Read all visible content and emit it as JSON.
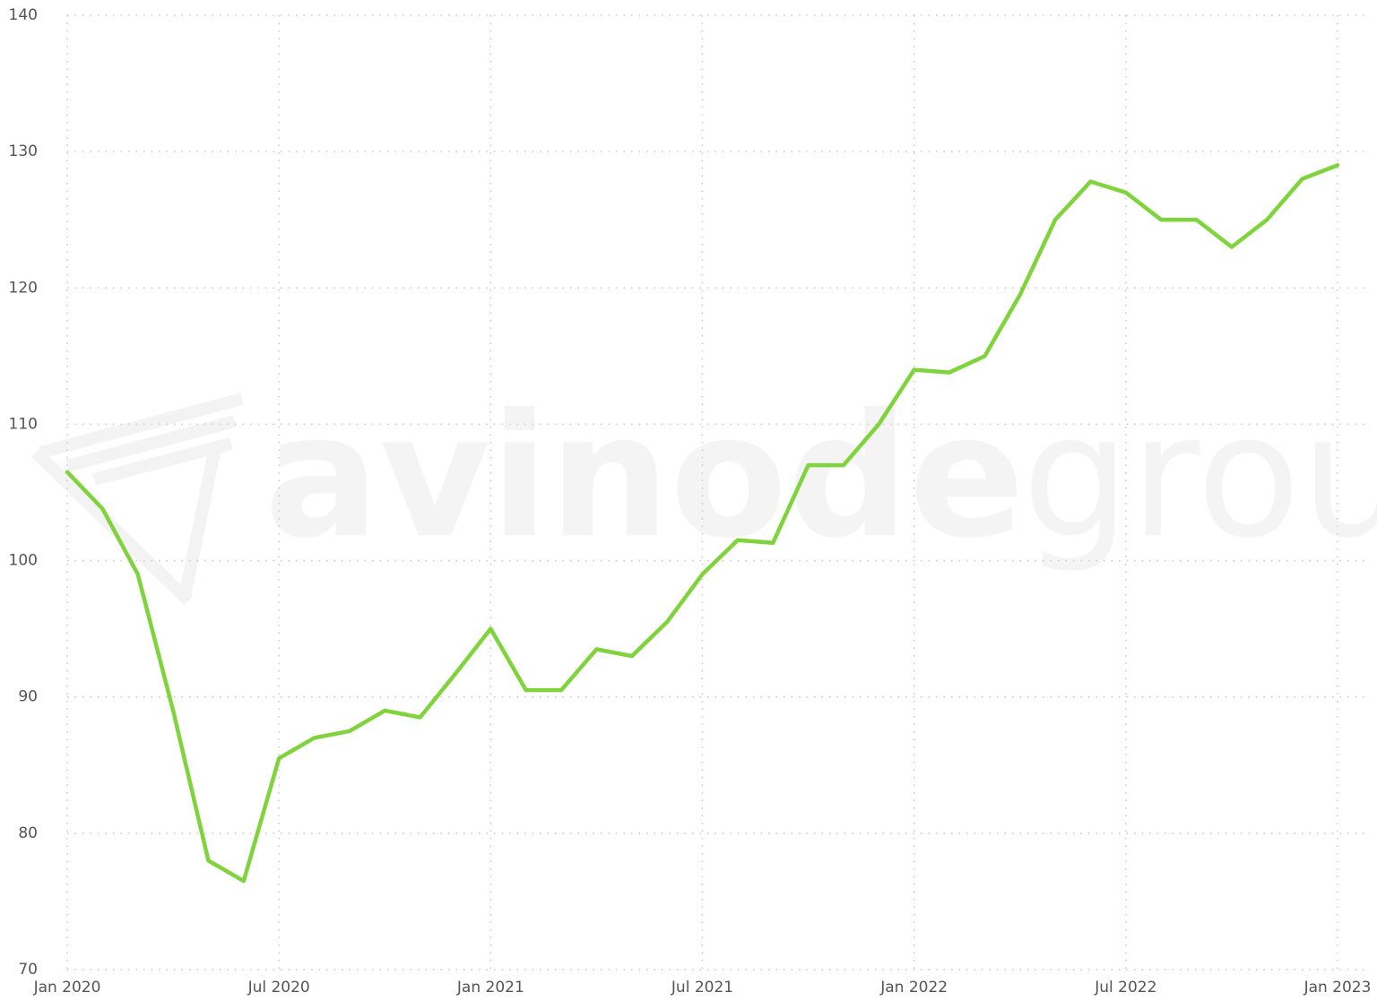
{
  "chart_data": {
    "type": "line",
    "watermark": {
      "brand": "avinode",
      "suffix": "group"
    },
    "x": [
      "2020-01",
      "2020-02",
      "2020-03",
      "2020-04",
      "2020-05",
      "2020-06",
      "2020-07",
      "2020-08",
      "2020-09",
      "2020-10",
      "2020-11",
      "2020-12",
      "2021-01",
      "2021-02",
      "2021-03",
      "2021-04",
      "2021-05",
      "2021-06",
      "2021-07",
      "2021-08",
      "2021-09",
      "2021-10",
      "2021-11",
      "2021-12",
      "2022-01",
      "2022-02",
      "2022-03",
      "2022-04",
      "2022-05",
      "2022-06",
      "2022-07",
      "2022-08",
      "2022-09",
      "2022-10",
      "2022-11",
      "2022-12",
      "2023-01"
    ],
    "series": [
      {
        "color": "#7ed43a",
        "values": [
          106.5,
          103.8,
          99,
          89,
          78,
          76.5,
          85.5,
          87,
          87.5,
          89,
          88.5,
          91.7,
          95,
          90.5,
          90.5,
          93.5,
          93,
          95.5,
          99,
          101.5,
          101.3,
          107,
          107,
          110,
          114,
          113.8,
          115,
          119.5,
          125,
          127.8,
          127,
          125,
          125,
          123,
          125,
          128,
          129
        ]
      }
    ],
    "xticks": [
      {
        "value": "2020-01",
        "label": "Jan 2020"
      },
      {
        "value": "2020-07",
        "label": "Jul 2020"
      },
      {
        "value": "2021-01",
        "label": "Jan 2021"
      },
      {
        "value": "2021-07",
        "label": "Jul 2021"
      },
      {
        "value": "2022-01",
        "label": "Jan 2022"
      },
      {
        "value": "2022-07",
        "label": "Jul 2022"
      },
      {
        "value": "2023-01",
        "label": "Jan 2023"
      }
    ],
    "ylim": [
      70,
      140
    ],
    "yticks": [
      70,
      80,
      90,
      100,
      110,
      120,
      130,
      140
    ],
    "grid": true
  }
}
